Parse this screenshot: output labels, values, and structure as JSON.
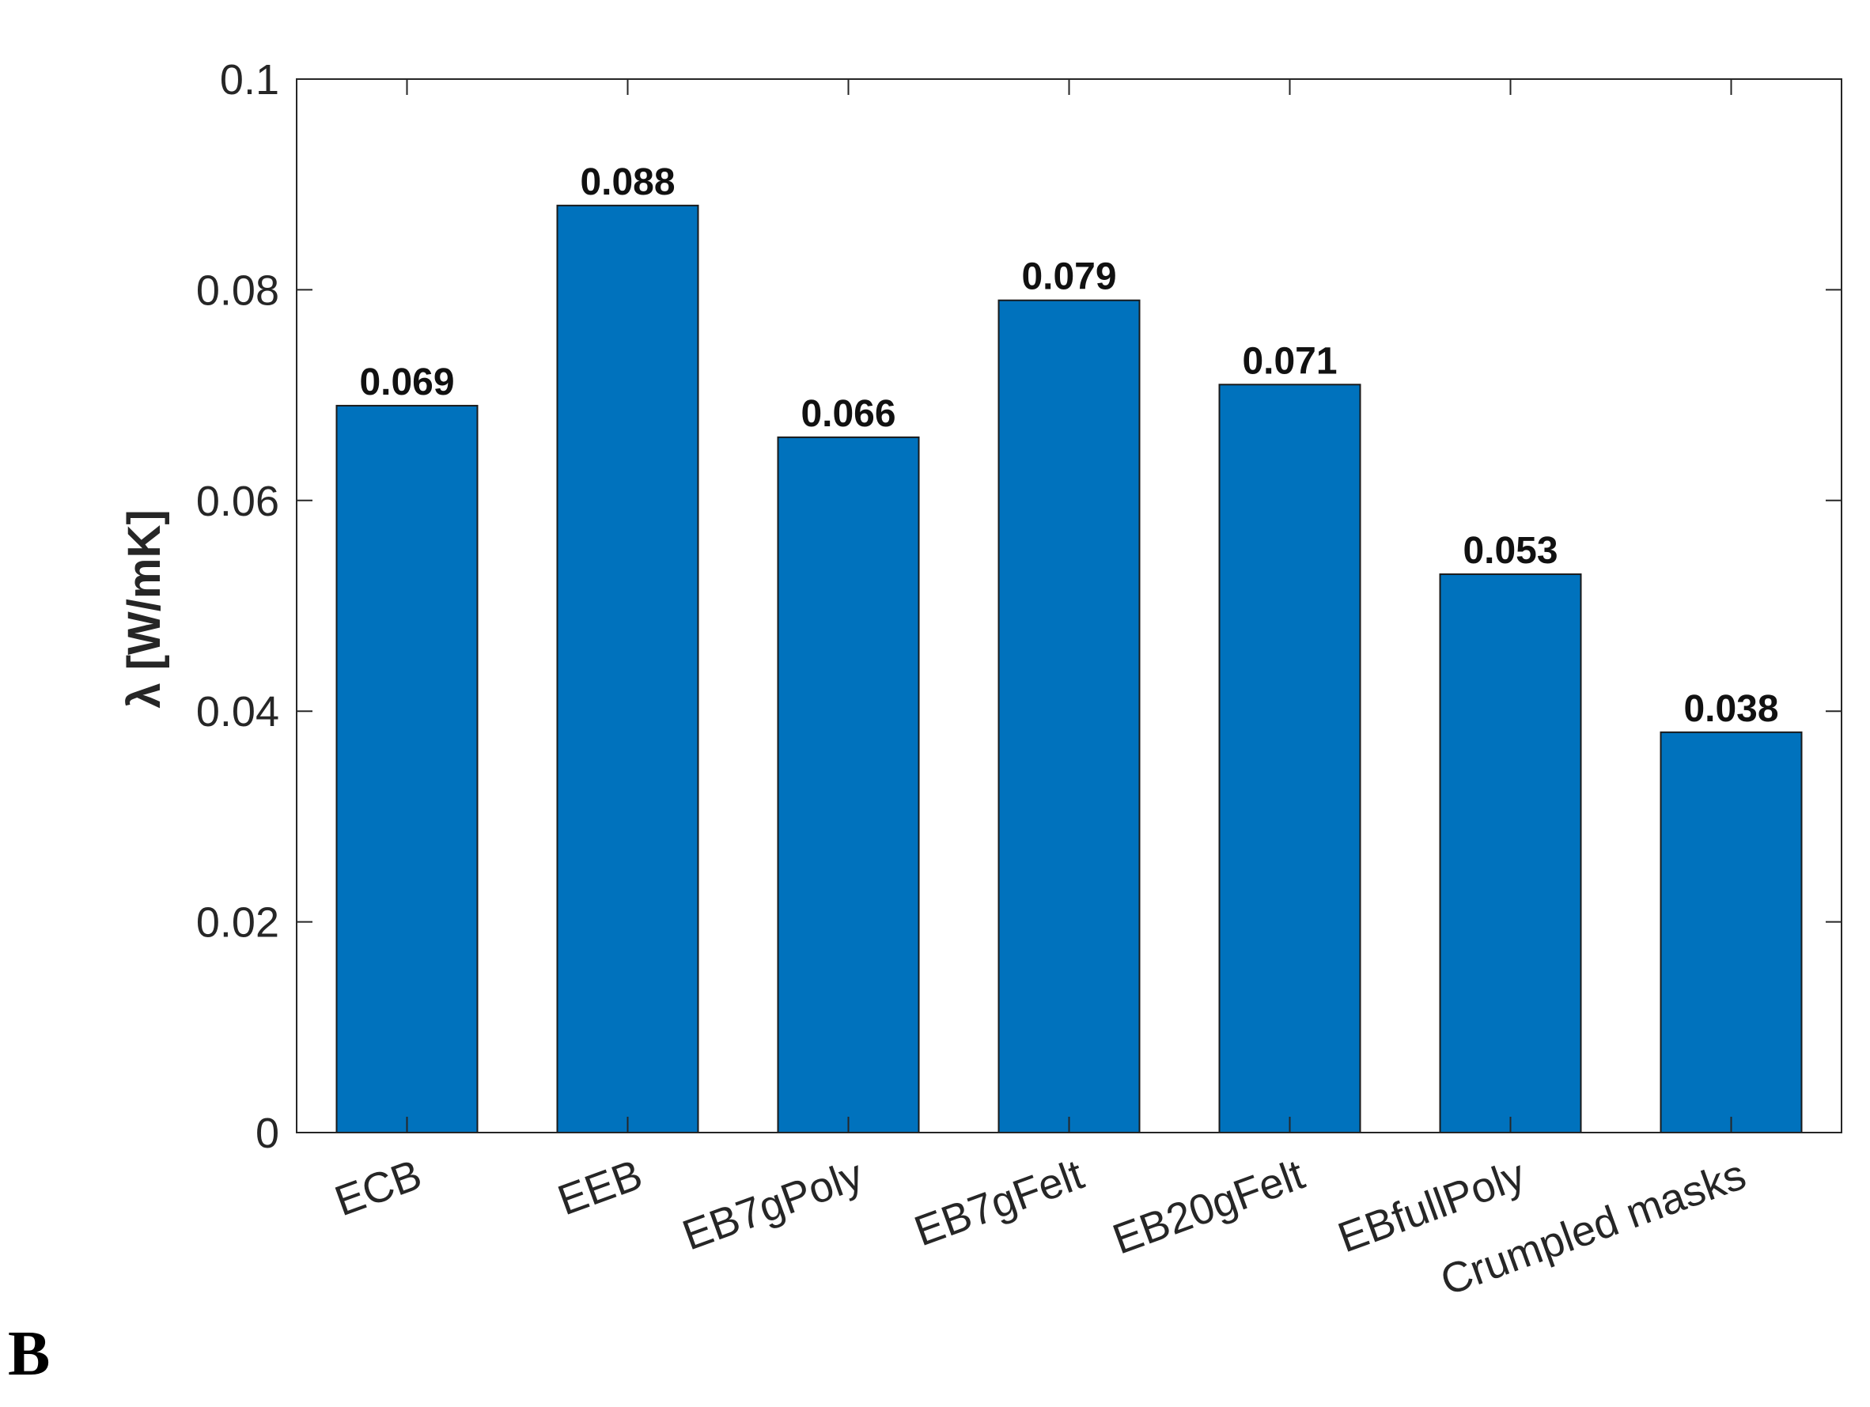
{
  "panel_label": "B",
  "chart_data": {
    "type": "bar",
    "title": "",
    "xlabel": "",
    "ylabel": "λ [W/mK]",
    "categories": [
      "ECB",
      "EEB",
      "EB7gPoly",
      "EB7gFelt",
      "EB20gFelt",
      "EBfullPoly",
      "Crumpled masks"
    ],
    "values": [
      0.069,
      0.088,
      0.066,
      0.079,
      0.071,
      0.053,
      0.038
    ],
    "data_labels": [
      "0.069",
      "0.088",
      "0.066",
      "0.079",
      "0.071",
      "0.053",
      "0.038"
    ],
    "ylim": [
      0,
      0.1
    ],
    "yticks": [
      0,
      0.02,
      0.04,
      0.06,
      0.08,
      0.1
    ],
    "ytick_labels": [
      "0",
      "0.02",
      "0.04",
      "0.06",
      "0.08",
      "0.1"
    ],
    "grid": false,
    "colors": {
      "bar": "#0072BD",
      "bar_edge": "#1a1a1a",
      "axis": "#262626"
    }
  }
}
